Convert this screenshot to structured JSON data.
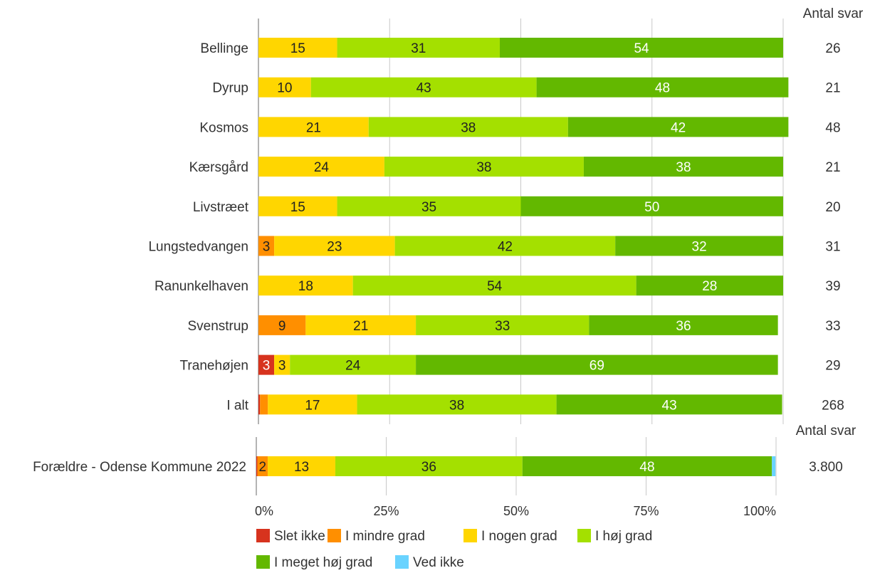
{
  "chart_data": {
    "type": "bar",
    "orientation": "horizontal",
    "stacked": true,
    "x_range": [
      0,
      100
    ],
    "grid": true,
    "legend_position": "bottom",
    "count_header": "Antal svar",
    "series": [
      {
        "name": "Slet ikke",
        "color": "#d7331e"
      },
      {
        "name": "I mindre grad",
        "color": "#ff8f00"
      },
      {
        "name": "I nogen grad",
        "color": "#ffd600"
      },
      {
        "name": "I høj grad",
        "color": "#a4e000"
      },
      {
        "name": "I meget høj grad",
        "color": "#63b800"
      },
      {
        "name": "Ved ikke",
        "color": "#69d3ff"
      }
    ],
    "panels": [
      {
        "rows": [
          {
            "label": "Bellinge",
            "values": [
              0,
              0,
              15,
              31,
              54,
              0
            ],
            "count": "26"
          },
          {
            "label": "Dyrup",
            "values": [
              0,
              0,
              10,
              43,
              48,
              0
            ],
            "count": "21"
          },
          {
            "label": "Kosmos",
            "values": [
              0,
              0,
              21,
              38,
              42,
              0
            ],
            "count": "48"
          },
          {
            "label": "Kærsgård",
            "values": [
              0,
              0,
              24,
              38,
              38,
              0
            ],
            "count": "21"
          },
          {
            "label": "Livstræet",
            "values": [
              0,
              0,
              15,
              35,
              50,
              0
            ],
            "count": "20"
          },
          {
            "label": "Lungstedvangen",
            "values": [
              0,
              3,
              23,
              42,
              32,
              0
            ],
            "count": "31"
          },
          {
            "label": "Ranunkelhaven",
            "values": [
              0,
              0,
              18,
              54,
              28,
              0
            ],
            "count": "39"
          },
          {
            "label": "Svenstrup",
            "values": [
              0,
              9,
              21,
              33,
              36,
              0
            ],
            "count": "33"
          },
          {
            "label": "Tranehøjen",
            "values": [
              3,
              0,
              3,
              24,
              69,
              0
            ],
            "count": "29"
          },
          {
            "label": "I alt",
            "values": [
              0.3,
              1.5,
              17,
              38,
              43,
              0
            ],
            "count": "268"
          }
        ]
      },
      {
        "rows": [
          {
            "label": "Forældre - Odense Kommune 2022",
            "values": [
              0.2,
              2,
              13,
              36,
              48,
              0.7
            ],
            "count": "3.800"
          }
        ]
      }
    ],
    "x_ticks": [
      "0%",
      "25%",
      "50%",
      "75%",
      "100%"
    ]
  }
}
